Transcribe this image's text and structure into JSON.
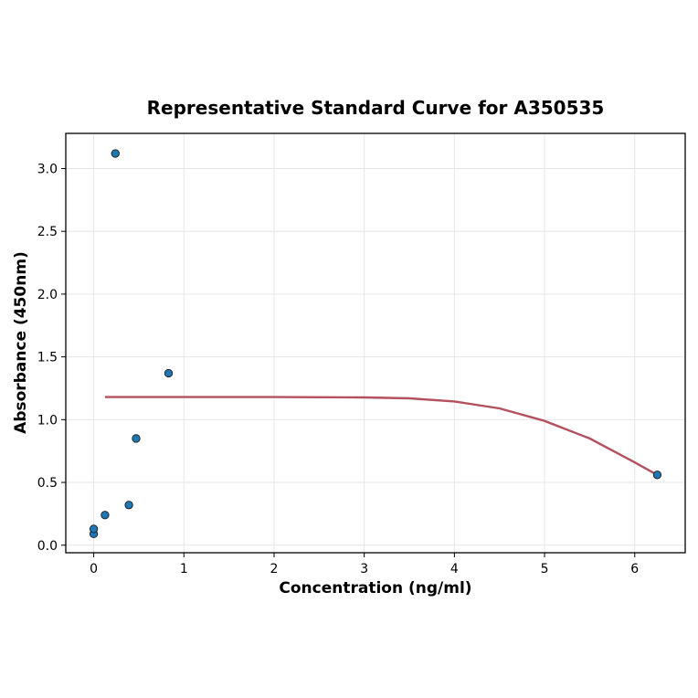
{
  "chart_data": {
    "type": "scatter",
    "title": "Representative Standard Curve for A350535",
    "xlabel": "Concentration (ng/ml)",
    "ylabel": "Absorbance (450nm)",
    "xlim": [
      -0.31,
      6.56
    ],
    "ylim": [
      -0.06,
      3.28
    ],
    "xticks": [
      0,
      1,
      2,
      3,
      4,
      5,
      6
    ],
    "yticks": [
      0.0,
      0.5,
      1.0,
      1.5,
      2.0,
      2.5,
      3.0
    ],
    "xtick_labels": [
      "0",
      "1",
      "2",
      "3",
      "4",
      "5",
      "6"
    ],
    "ytick_labels": [
      "0.0",
      "0.5",
      "1.0",
      "1.5",
      "2.0",
      "2.5",
      "3.0"
    ],
    "grid": true,
    "points": {
      "x": [
        0.0,
        0.0,
        0.125,
        0.24,
        0.39,
        0.47,
        0.83,
        6.25
      ],
      "y": [
        0.09,
        0.13,
        0.24,
        3.12,
        0.32,
        0.85,
        1.37,
        0.56
      ],
      "color": "#1f77b4"
    },
    "fit_curve": {
      "x": [
        0.125,
        1.0,
        2.0,
        3.0,
        3.5,
        4.0,
        4.5,
        5.0,
        5.5,
        6.0,
        6.25
      ],
      "y": [
        1.18,
        1.18,
        1.18,
        1.177,
        1.17,
        1.145,
        1.09,
        0.99,
        0.85,
        0.66,
        0.56
      ],
      "color": "#b5505e"
    }
  }
}
